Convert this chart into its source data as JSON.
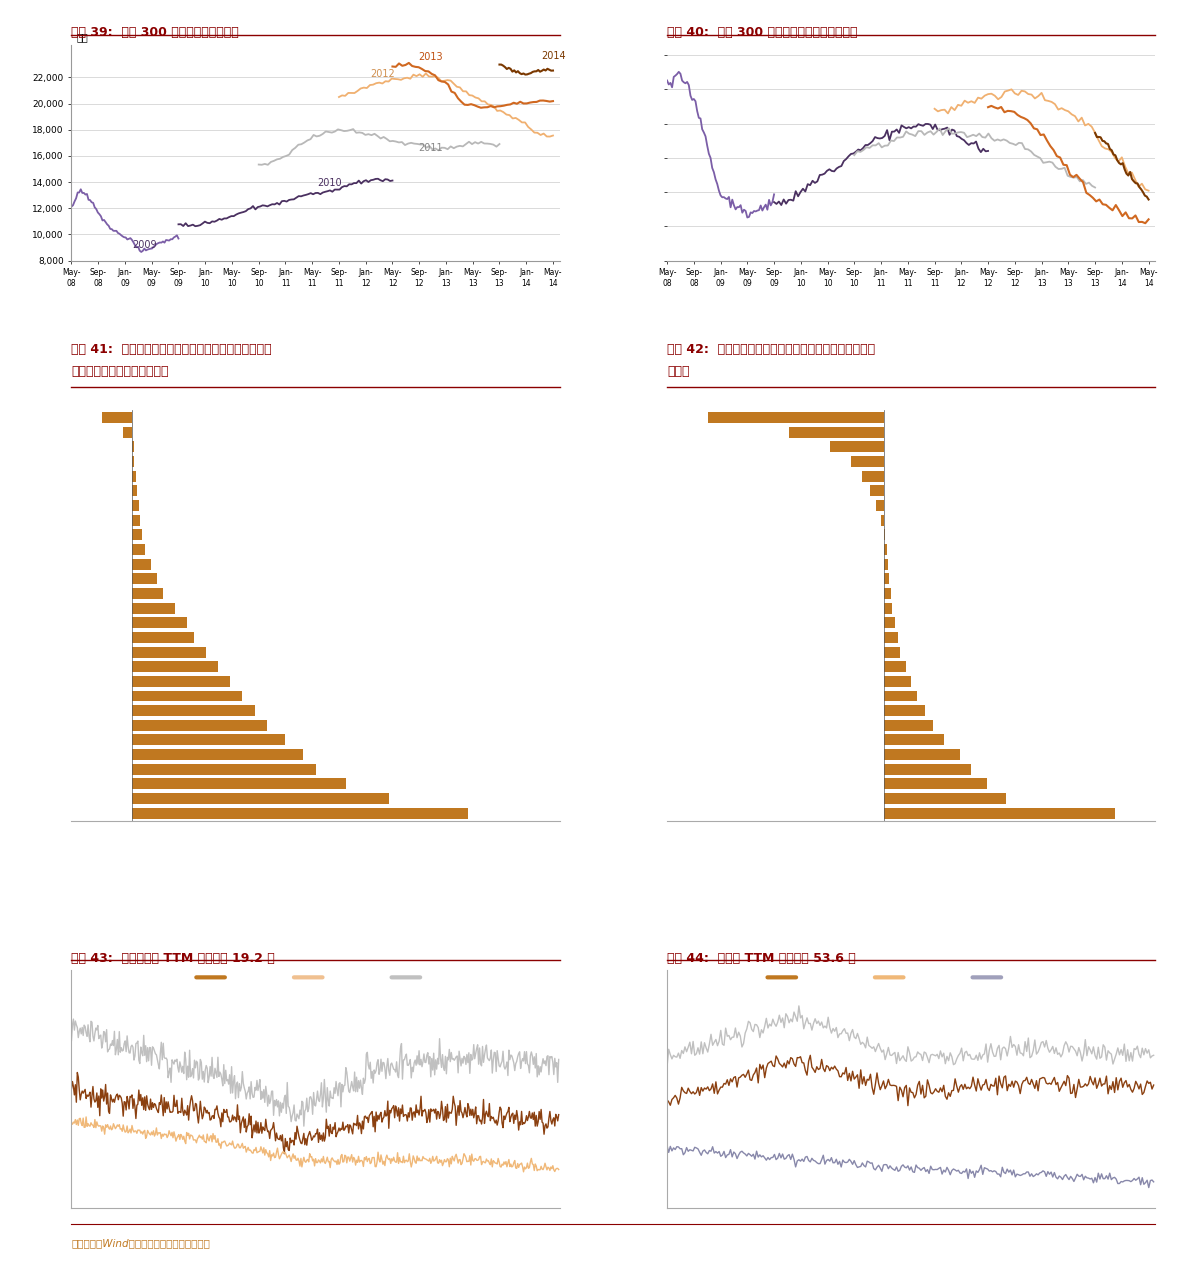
{
  "title39": "图表 39:  沪深 300 成分预测净利润变动",
  "title40": "图表 40:  沪深 300 非金融成分预测净利润变动",
  "title41": "图表 41:  上周港口航运和轻工制造等行业市场一致预期有所下调，有色金属有所上调",
  "title42": "图表 42:  年初至今港口航运、航空机场等行业盈利下调幅度较大",
  "title43": "图表 43:  非银行板块 TTM 市盈率为 19.2 倍",
  "title44": "图表 44:  创业板 TTM 市盈率为 53.6 倍",
  "footer": "资料来源：Wind，朝阳永续，中金公司研究部",
  "bar_color": "#C07820",
  "title_color": "#8B0000",
  "bg_color": "#FFFFFF",
  "grid_color": "#CCCCCC",
  "vals41": [
    5.5,
    4.2,
    3.5,
    3.0,
    2.8,
    2.5,
    2.2,
    2.0,
    1.8,
    1.6,
    1.4,
    1.2,
    1.0,
    0.9,
    0.7,
    0.5,
    0.4,
    0.3,
    0.2,
    0.15,
    0.12,
    0.1,
    0.08,
    0.05,
    0.03,
    0.02,
    -0.15,
    -0.5
  ],
  "vals42": [
    8.5,
    4.5,
    3.8,
    3.2,
    2.8,
    2.2,
    1.8,
    1.5,
    1.2,
    1.0,
    0.8,
    0.6,
    0.5,
    0.4,
    0.3,
    0.25,
    0.2,
    0.15,
    0.1,
    0.05,
    -0.1,
    -0.3,
    -0.5,
    -0.8,
    -1.2,
    -2.0,
    -3.5,
    -6.5
  ]
}
